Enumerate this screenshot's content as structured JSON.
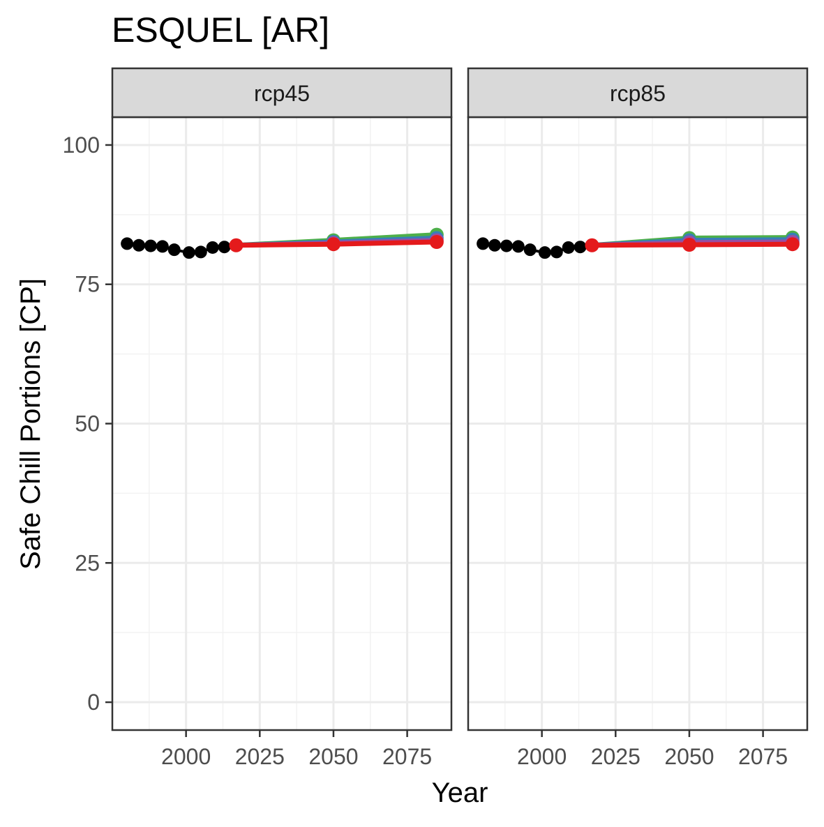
{
  "chart_data": {
    "type": "line",
    "title": "ESQUEL [AR]",
    "xlabel": "Year",
    "ylabel": "Safe Chill Portions [CP]",
    "xlim": [
      1975,
      2090
    ],
    "ylim": [
      -5,
      105
    ],
    "x_ticks": [
      2000,
      2025,
      2050,
      2075
    ],
    "y_ticks": [
      0,
      25,
      50,
      75,
      100
    ],
    "grid": true,
    "legend": "none",
    "facets": [
      {
        "label": "rcp45",
        "series": [
          {
            "color": "#000000",
            "points": [
              {
                "x": 1980,
                "y": 82.3
              },
              {
                "x": 1984,
                "y": 82.0
              },
              {
                "x": 1988,
                "y": 81.9
              },
              {
                "x": 1992,
                "y": 81.8
              },
              {
                "x": 1996,
                "y": 81.2
              },
              {
                "x": 2001,
                "y": 80.7
              },
              {
                "x": 2005,
                "y": 80.8
              },
              {
                "x": 2009,
                "y": 81.6
              },
              {
                "x": 2013,
                "y": 81.7
              },
              {
                "x": 2017,
                "y": 82.0
              }
            ]
          },
          {
            "color": "#4DAF4A",
            "points": [
              {
                "x": 2017,
                "y": 82.0
              },
              {
                "x": 2050,
                "y": 82.9
              },
              {
                "x": 2085,
                "y": 83.9
              }
            ]
          },
          {
            "color": "#377EB8",
            "points": [
              {
                "x": 2017,
                "y": 82.0
              },
              {
                "x": 2050,
                "y": 82.6
              },
              {
                "x": 2085,
                "y": 83.3
              }
            ]
          },
          {
            "color": "#984EA3",
            "points": [
              {
                "x": 2017,
                "y": 82.0
              },
              {
                "x": 2050,
                "y": 82.4
              },
              {
                "x": 2085,
                "y": 82.9
              }
            ]
          },
          {
            "color": "#E41A1C",
            "points": [
              {
                "x": 2017,
                "y": 82.0
              },
              {
                "x": 2050,
                "y": 82.2
              },
              {
                "x": 2085,
                "y": 82.6
              }
            ]
          }
        ]
      },
      {
        "label": "rcp85",
        "series": [
          {
            "color": "#000000",
            "points": [
              {
                "x": 1980,
                "y": 82.3
              },
              {
                "x": 1984,
                "y": 82.0
              },
              {
                "x": 1988,
                "y": 81.9
              },
              {
                "x": 1992,
                "y": 81.8
              },
              {
                "x": 1996,
                "y": 81.2
              },
              {
                "x": 2001,
                "y": 80.7
              },
              {
                "x": 2005,
                "y": 80.8
              },
              {
                "x": 2009,
                "y": 81.6
              },
              {
                "x": 2013,
                "y": 81.7
              },
              {
                "x": 2017,
                "y": 82.0
              }
            ]
          },
          {
            "color": "#4DAF4A",
            "points": [
              {
                "x": 2017,
                "y": 82.0
              },
              {
                "x": 2050,
                "y": 83.3
              },
              {
                "x": 2085,
                "y": 83.4
              }
            ]
          },
          {
            "color": "#377EB8",
            "points": [
              {
                "x": 2017,
                "y": 82.0
              },
              {
                "x": 2050,
                "y": 82.9
              },
              {
                "x": 2085,
                "y": 83.0
              }
            ]
          },
          {
            "color": "#984EA3",
            "points": [
              {
                "x": 2017,
                "y": 82.0
              },
              {
                "x": 2050,
                "y": 82.5
              },
              {
                "x": 2085,
                "y": 82.6
              }
            ]
          },
          {
            "color": "#E41A1C",
            "points": [
              {
                "x": 2017,
                "y": 82.0
              },
              {
                "x": 2050,
                "y": 82.1
              },
              {
                "x": 2085,
                "y": 82.2
              }
            ]
          }
        ]
      }
    ]
  }
}
